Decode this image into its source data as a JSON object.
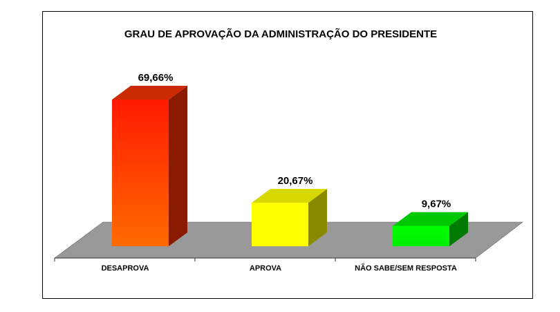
{
  "chart_data": {
    "type": "bar",
    "title": "GRAU DE APROVAÇÃO DA ADMINISTRAÇÃO DO PRESIDENTE",
    "categories": [
      "DESAPROVA",
      "APROVA",
      "NÃO SABE/SEM RESPOSTA"
    ],
    "values": [
      69.66,
      20.67,
      9.67
    ],
    "value_labels": [
      "69,66%",
      "20,67%",
      "9,67%"
    ],
    "unit": "%",
    "colors": [
      "#ff2200",
      "#ffff00",
      "#00e000"
    ],
    "grid": false,
    "legend": "none",
    "ylim": [
      0,
      70
    ]
  }
}
